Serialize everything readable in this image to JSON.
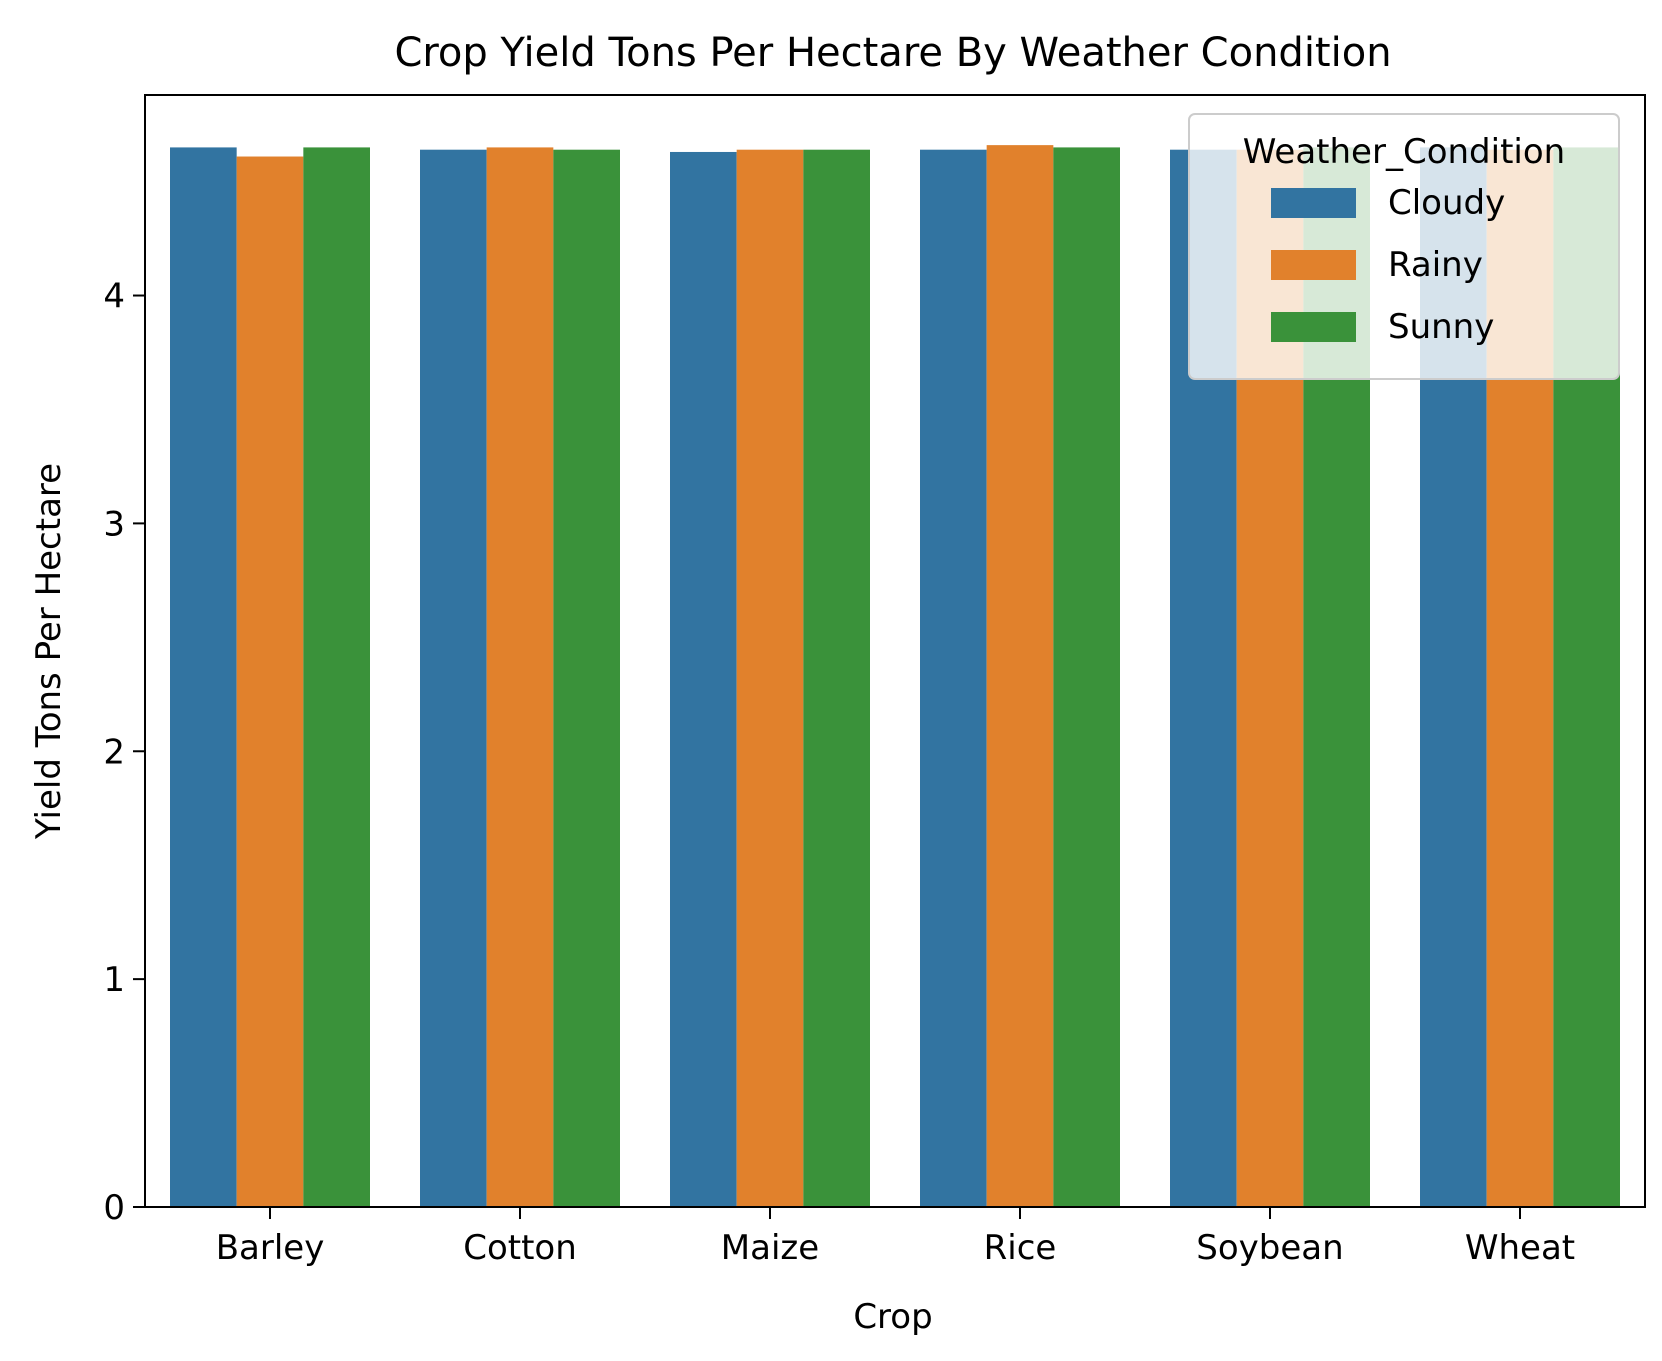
{
  "chart_data": {
    "type": "bar",
    "title": "Crop Yield Tons Per Hectare By Weather Condition",
    "xlabel": "Crop",
    "ylabel": "Yield Tons Per Hectare",
    "categories": [
      "Barley",
      "Cotton",
      "Maize",
      "Rice",
      "Soybean",
      "Wheat"
    ],
    "series": [
      {
        "name": "Cloudy",
        "color": "#3274a1",
        "values": [
          4.65,
          4.64,
          4.63,
          4.64,
          4.64,
          4.65
        ]
      },
      {
        "name": "Rainy",
        "color": "#e1812c",
        "values": [
          4.61,
          4.65,
          4.64,
          4.66,
          4.64,
          4.64
        ]
      },
      {
        "name": "Sunny",
        "color": "#3a923a",
        "values": [
          4.65,
          4.64,
          4.64,
          4.65,
          4.65,
          4.65
        ]
      }
    ],
    "ylim": [
      0,
      4.88
    ],
    "yticks": [
      0,
      1,
      2,
      3,
      4
    ],
    "grid": false,
    "legend": {
      "title": "Weather_Condition",
      "placement": "top-right"
    }
  }
}
